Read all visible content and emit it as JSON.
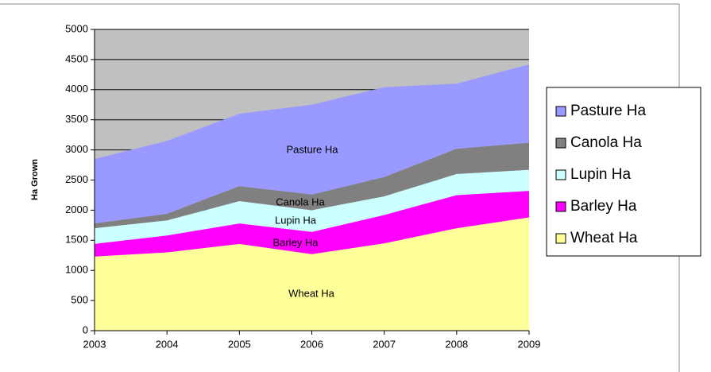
{
  "chart_data": {
    "type": "stacked_area",
    "y_label": "Ha Grown",
    "x": [
      2003,
      2004,
      2005,
      2006,
      2007,
      2008,
      2009
    ],
    "xlim": [
      2003,
      2009
    ],
    "xticks": [
      2003,
      2004,
      2005,
      2006,
      2007,
      2008,
      2009
    ],
    "ylim": [
      0,
      5000
    ],
    "yticks": [
      0,
      500,
      1000,
      1500,
      2000,
      2500,
      3000,
      3500,
      4000,
      4500,
      5000
    ],
    "grid": true,
    "legend": "right",
    "series": [
      {
        "name": "Wheat Ha",
        "color": "#ffff99",
        "values": [
          1230,
          1300,
          1440,
          1270,
          1450,
          1700,
          1880
        ]
      },
      {
        "name": "Barley Ha",
        "color": "#ff00ff",
        "values": [
          210,
          280,
          340,
          370,
          470,
          550,
          440
        ]
      },
      {
        "name": "Lupin Ha",
        "color": "#ccffff",
        "values": [
          260,
          250,
          370,
          360,
          310,
          350,
          350
        ]
      },
      {
        "name": "Canola Ha",
        "color": "#808080",
        "values": [
          80,
          110,
          250,
          260,
          320,
          420,
          450
        ]
      },
      {
        "name": "Pasture Ha",
        "color": "#9999ff",
        "values": [
          1070,
          1210,
          1200,
          1490,
          1490,
          1080,
          1300
        ]
      }
    ]
  }
}
